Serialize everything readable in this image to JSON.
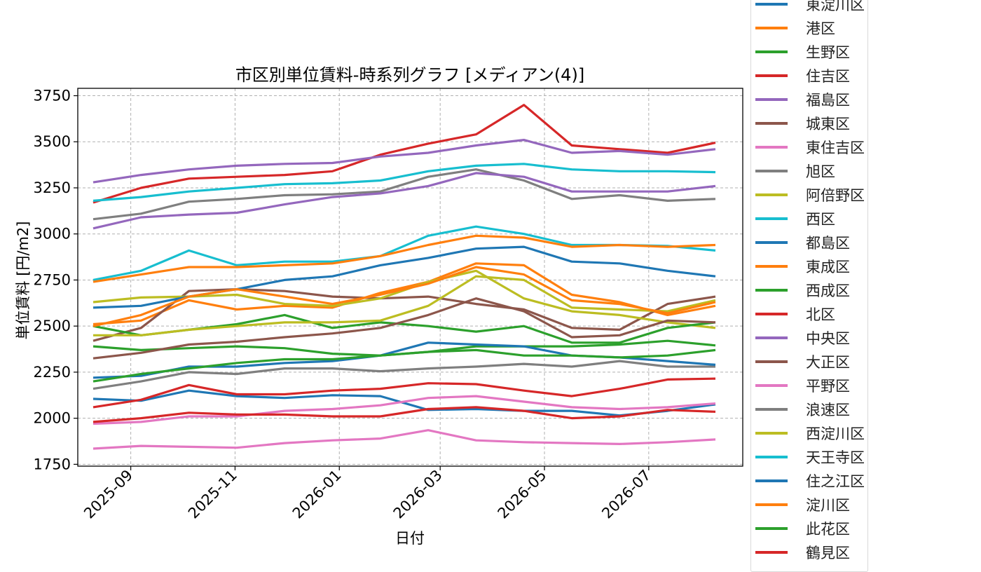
{
  "chart_data": {
    "type": "line",
    "title": "市区別単位賃料-時系列グラフ [メディアン(4)]",
    "xlabel": "日付",
    "ylabel": "単位賃料 [円/m2]",
    "xlim": [
      "2025-08-01",
      "2026-08-25"
    ],
    "ylim": [
      1740,
      3790
    ],
    "x_ticks": [
      "2025-09",
      "2025-11",
      "2026-01",
      "2026-03",
      "2026-05",
      "2026-07"
    ],
    "y_ticks": [
      1750,
      2000,
      2250,
      2500,
      2750,
      3000,
      3250,
      3500,
      3750
    ],
    "grid": true,
    "legend_position": "right",
    "x": [
      "2025-08-10",
      "2025-09-07",
      "2025-10-05",
      "2025-11-02",
      "2025-11-30",
      "2025-12-28",
      "2026-01-25",
      "2026-02-22",
      "2026-03-22",
      "2026-04-19",
      "2026-05-17",
      "2026-06-14",
      "2026-07-12",
      "2026-08-09"
    ],
    "series": [
      {
        "name": "東淀川区",
        "color": "#1f77b4",
        "values": [
          2105,
          2095,
          2150,
          2120,
          2110,
          2125,
          2120,
          2045,
          2050,
          2040,
          2040,
          2015,
          2040,
          2075
        ]
      },
      {
        "name": "港区",
        "color": "#ff7f0e",
        "values": [
          2510,
          2530,
          2640,
          2590,
          2610,
          2600,
          2680,
          2740,
          2840,
          2830,
          2670,
          2630,
          2560,
          2610
        ]
      },
      {
        "name": "生野区",
        "color": "#2ca02c",
        "values": [
          2390,
          2370,
          2380,
          2390,
          2380,
          2350,
          2340,
          2360,
          2390,
          2390,
          2390,
          2400,
          2420,
          2395
        ]
      },
      {
        "name": "住吉区",
        "color": "#d62728",
        "values": [
          3170,
          3250,
          3300,
          3310,
          3320,
          3340,
          3430,
          3490,
          3540,
          3700,
          3480,
          3460,
          3440,
          3495
        ]
      },
      {
        "name": "福島区",
        "color": "#9467bd",
        "values": [
          3280,
          3320,
          3350,
          3370,
          3380,
          3385,
          3420,
          3440,
          3480,
          3510,
          3440,
          3450,
          3430,
          3460
        ]
      },
      {
        "name": "城東区",
        "color": "#8c564b",
        "values": [
          2420,
          2490,
          2690,
          2700,
          2690,
          2660,
          2650,
          2660,
          2620,
          2590,
          2490,
          2480,
          2620,
          2660
        ]
      },
      {
        "name": "東住吉区",
        "color": "#e377c2",
        "values": [
          1835,
          1850,
          1845,
          1840,
          1865,
          1880,
          1890,
          1935,
          1880,
          1870,
          1865,
          1860,
          1870,
          1885
        ]
      },
      {
        "name": "旭区",
        "color": "#7f7f7f",
        "values": [
          3080,
          3110,
          3175,
          3190,
          3210,
          3215,
          3230,
          3310,
          3350,
          3290,
          3190,
          3210,
          3180,
          3190
        ]
      },
      {
        "name": "阿倍野区",
        "color": "#bcbd22",
        "values": [
          2630,
          2655,
          2660,
          2670,
          2620,
          2610,
          2650,
          2740,
          2800,
          2650,
          2580,
          2560,
          2520,
          2490
        ]
      },
      {
        "name": "西区",
        "color": "#17becf",
        "values": [
          2750,
          2800,
          2910,
          2830,
          2850,
          2850,
          2880,
          2990,
          3040,
          3000,
          2940,
          2940,
          2935,
          2910
        ]
      },
      {
        "name": "都島区",
        "color": "#1f77b4",
        "values": [
          2600,
          2610,
          2660,
          2700,
          2750,
          2770,
          2830,
          2870,
          2920,
          2930,
          2850,
          2840,
          2800,
          2770
        ]
      },
      {
        "name": "東成区",
        "color": "#ff7f0e",
        "values": [
          2740,
          2780,
          2820,
          2820,
          2830,
          2840,
          2880,
          2940,
          2990,
          2980,
          2930,
          2940,
          2930,
          2940
        ]
      },
      {
        "name": "西成区",
        "color": "#2ca02c",
        "values": [
          2500,
          2450,
          2480,
          2510,
          2560,
          2490,
          2520,
          2500,
          2470,
          2500,
          2410,
          2410,
          2490,
          2520
        ]
      },
      {
        "name": "北区",
        "color": "#d62728",
        "values": [
          2060,
          2100,
          2180,
          2130,
          2130,
          2150,
          2160,
          2190,
          2185,
          2150,
          2120,
          2160,
          2210,
          2215
        ]
      },
      {
        "name": "中央区",
        "color": "#9467bd",
        "values": [
          3030,
          3090,
          3105,
          3115,
          3160,
          3200,
          3220,
          3260,
          3330,
          3310,
          3230,
          3230,
          3230,
          3260
        ]
      },
      {
        "name": "大正区",
        "color": "#8c564b",
        "values": [
          2325,
          2355,
          2400,
          2415,
          2440,
          2460,
          2490,
          2560,
          2650,
          2580,
          2440,
          2450,
          2530,
          2520
        ]
      },
      {
        "name": "平野区",
        "color": "#e377c2",
        "values": [
          1970,
          1980,
          2010,
          2010,
          2040,
          2050,
          2070,
          2110,
          2120,
          2090,
          2060,
          2050,
          2060,
          2080
        ]
      },
      {
        "name": "浪速区",
        "color": "#7f7f7f",
        "values": [
          2160,
          2200,
          2250,
          2240,
          2270,
          2270,
          2255,
          2270,
          2280,
          2295,
          2280,
          2310,
          2280,
          2280
        ]
      },
      {
        "name": "西淀川区",
        "color": "#bcbd22",
        "values": [
          2450,
          2450,
          2480,
          2500,
          2520,
          2520,
          2530,
          2610,
          2770,
          2750,
          2600,
          2590,
          2580,
          2640
        ]
      },
      {
        "name": "天王寺区",
        "color": "#17becf",
        "values": [
          3180,
          3200,
          3230,
          3250,
          3270,
          3275,
          3290,
          3340,
          3370,
          3380,
          3350,
          3340,
          3340,
          3335
        ]
      },
      {
        "name": "住之江区",
        "color": "#1f77b4",
        "values": [
          2220,
          2230,
          2280,
          2280,
          2300,
          2310,
          2340,
          2410,
          2400,
          2390,
          2340,
          2330,
          2310,
          2290
        ]
      },
      {
        "name": "淀川区",
        "color": "#ff7f0e",
        "values": [
          2500,
          2560,
          2660,
          2700,
          2660,
          2620,
          2670,
          2730,
          2820,
          2780,
          2640,
          2620,
          2570,
          2630
        ]
      },
      {
        "name": "此花区",
        "color": "#2ca02c",
        "values": [
          2200,
          2240,
          2270,
          2300,
          2320,
          2320,
          2340,
          2360,
          2370,
          2340,
          2340,
          2330,
          2340,
          2370
        ]
      },
      {
        "name": "鶴見区",
        "color": "#d62728",
        "values": [
          1980,
          2000,
          2030,
          2020,
          2020,
          2010,
          2010,
          2050,
          2060,
          2040,
          2000,
          2010,
          2045,
          2035
        ]
      }
    ]
  }
}
